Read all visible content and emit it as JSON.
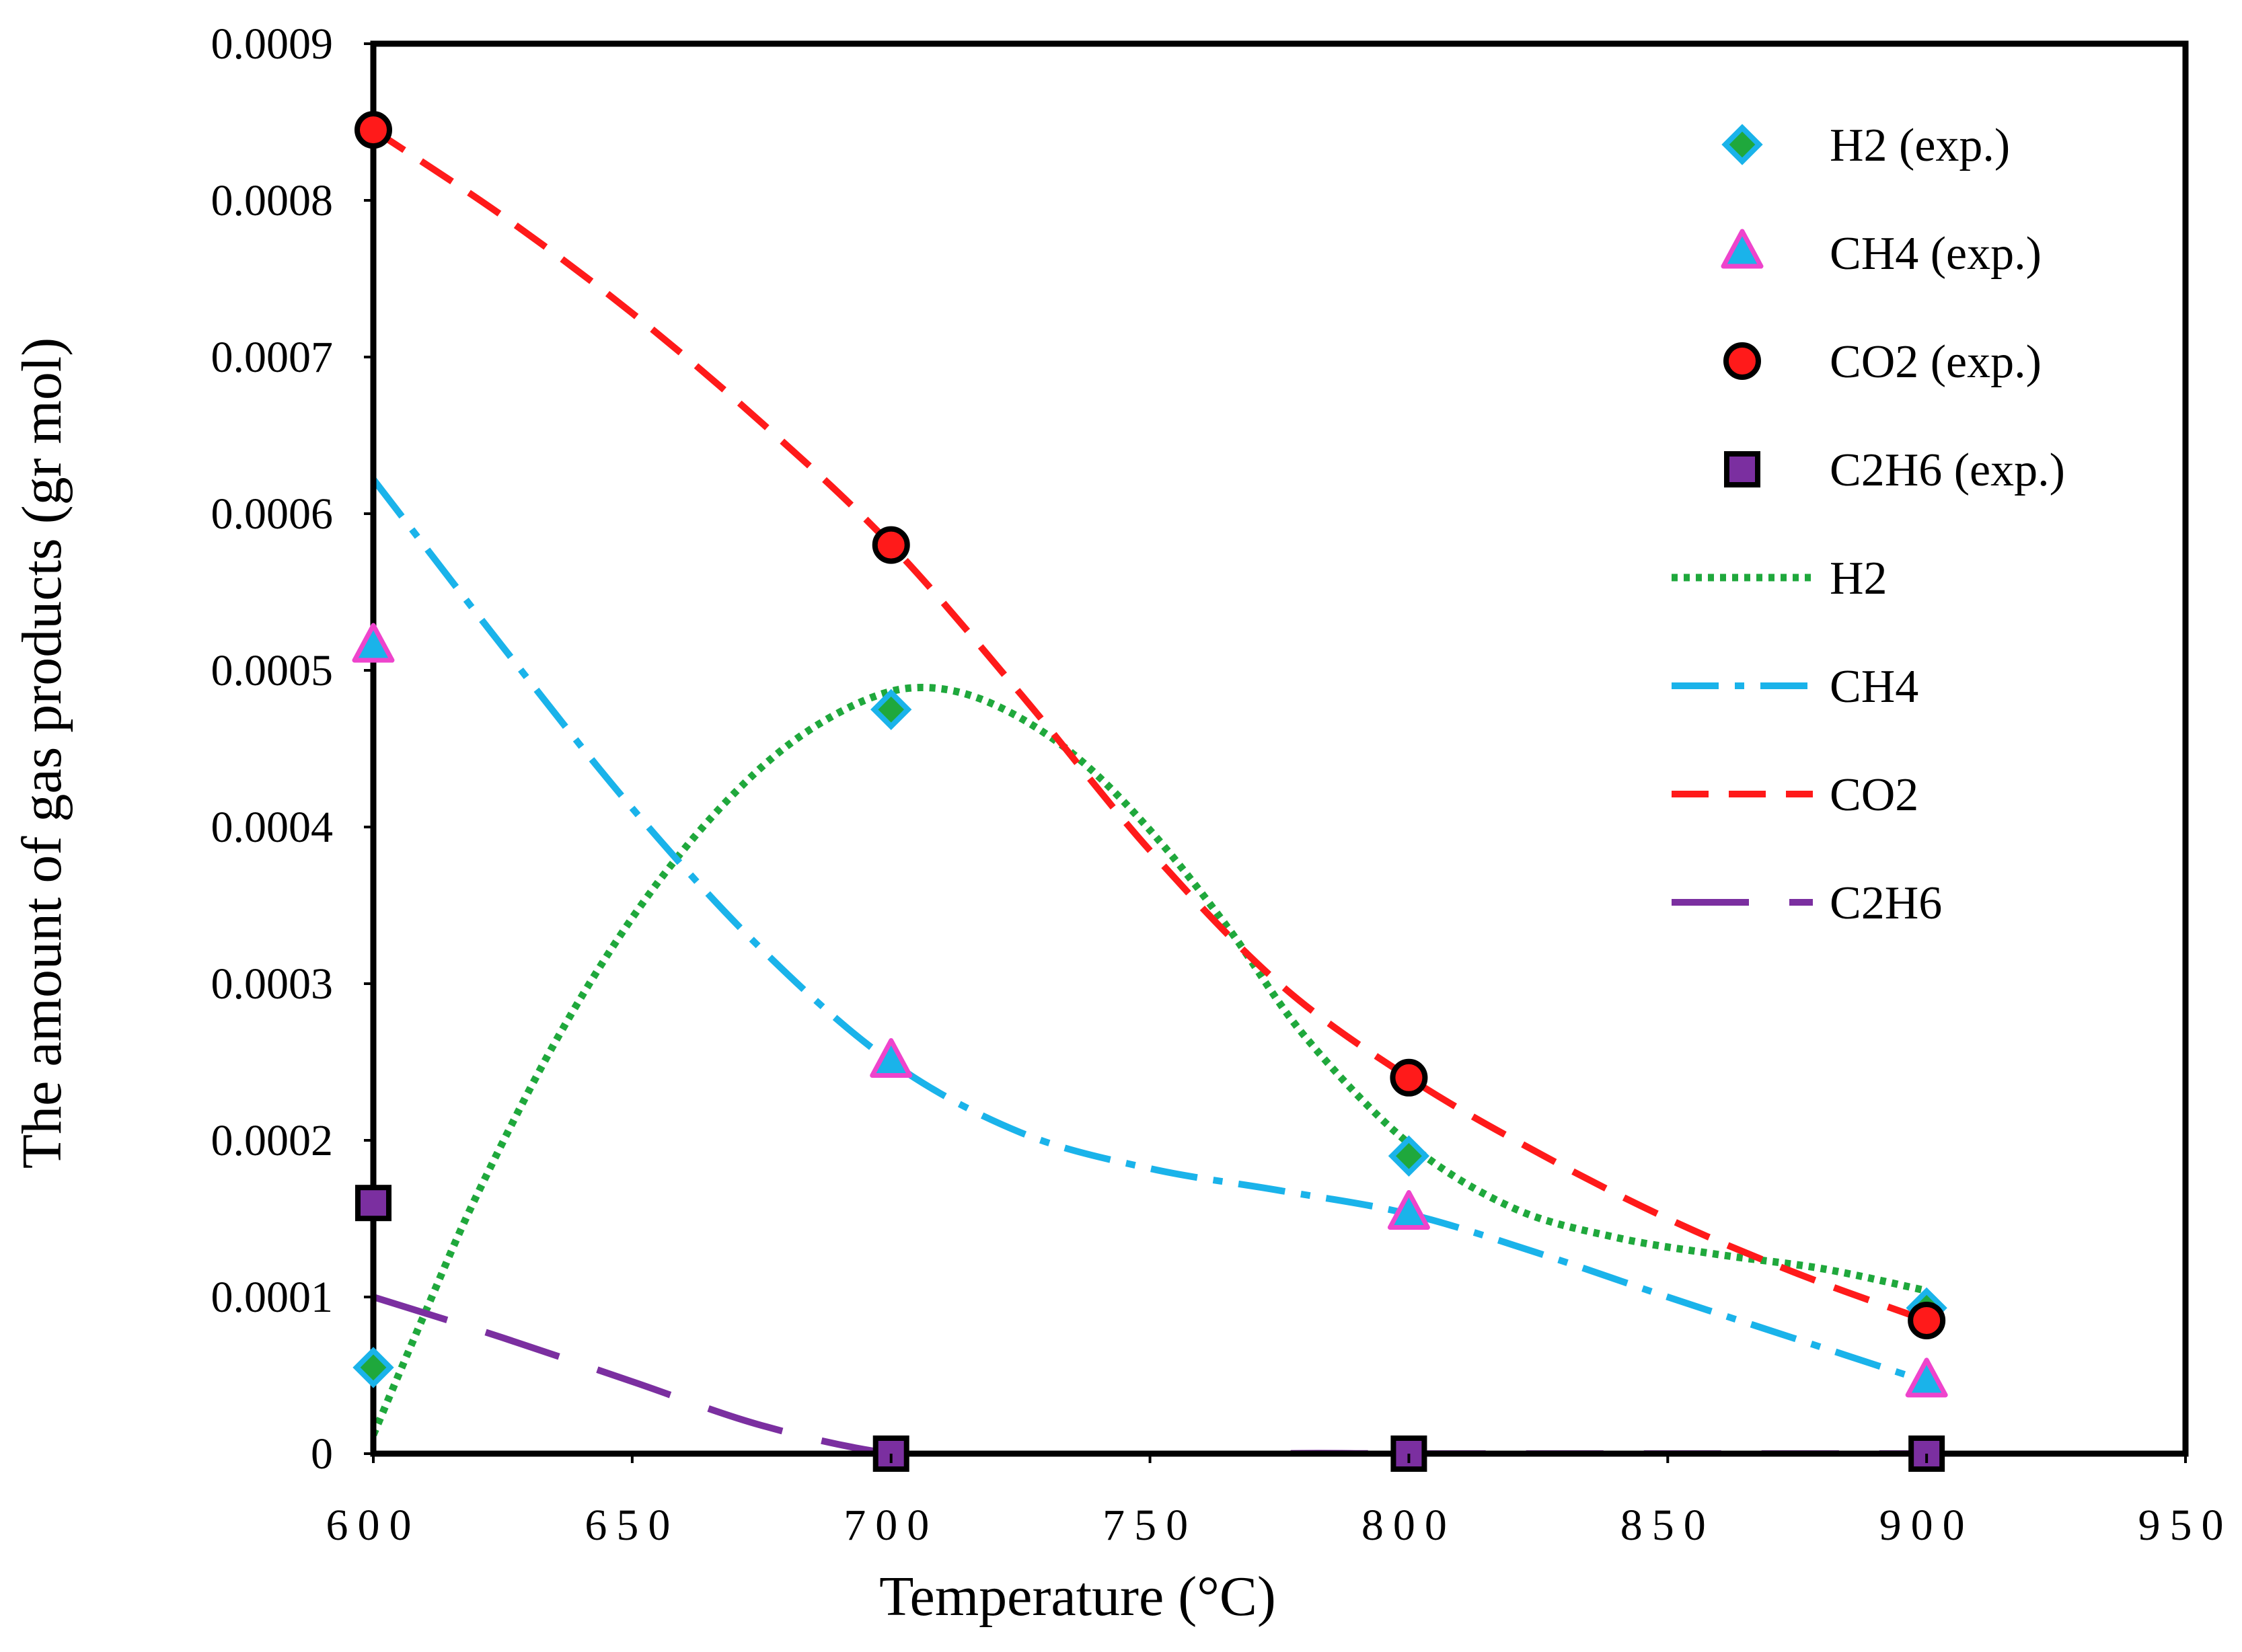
{
  "chart_data": {
    "type": "scatter",
    "title": "",
    "xlabel": "Temperature (°C)",
    "ylabel": "The amount of gas products (gr mol)",
    "xlim": [
      600,
      950
    ],
    "ylim": [
      0,
      0.0009
    ],
    "x_ticks": [
      600,
      650,
      700,
      750,
      800,
      850,
      900,
      950
    ],
    "x_tick_labels": [
      "600",
      "650",
      "700",
      "750",
      "800",
      "850",
      "900",
      "950"
    ],
    "y_ticks": [
      0,
      0.0001,
      0.0002,
      0.0003,
      0.0004,
      0.0005,
      0.0006,
      0.0007,
      0.0008,
      0.0009
    ],
    "y_tick_labels": [
      "0",
      "0.0001",
      "0.0002",
      "0.0003",
      "0.0004",
      "0.0005",
      "0.0006",
      "0.0007",
      "0.0008",
      "0.0009"
    ],
    "grid": false,
    "legend_position": "top-right",
    "series": [
      {
        "name": "H2 (exp.)",
        "kind": "marker",
        "marker": "diamond",
        "fill": "#1fa83c",
        "stroke": "#1ab3ea",
        "x": [
          600,
          700,
          800,
          900
        ],
        "y": [
          5.5e-05,
          0.000475,
          0.00019,
          9.3e-05
        ]
      },
      {
        "name": "CH4 (exp.)",
        "kind": "marker",
        "marker": "triangle",
        "fill": "#1ab3ea",
        "stroke": "#ee44cc",
        "x": [
          600,
          700,
          800,
          900
        ],
        "y": [
          0.000515,
          0.00025,
          0.000153,
          4.6e-05
        ]
      },
      {
        "name": "CO2 (exp.)",
        "kind": "marker",
        "marker": "circle",
        "fill": "#ff1a1a",
        "stroke": "#000000",
        "x": [
          600,
          700,
          800,
          900
        ],
        "y": [
          0.000845,
          0.00058,
          0.00024,
          8.5e-05
        ]
      },
      {
        "name": "C2H6 (exp.)",
        "kind": "marker",
        "marker": "square",
        "fill": "#7b2fa0",
        "stroke": "#000000",
        "x": [
          600,
          700,
          800,
          900
        ],
        "y": [
          0.00016,
          0.0,
          0.0,
          0.0
        ]
      },
      {
        "name": "H2",
        "kind": "line",
        "style": "dotted",
        "color": "#1fa83c",
        "x": [
          600,
          610,
          620,
          635,
          650,
          665,
          680,
          695,
          707,
          720,
          735,
          750,
          765,
          780,
          800,
          820,
          840,
          860,
          880,
          900
        ],
        "y": [
          1.2e-05,
          9e-05,
          0.000165,
          0.000262,
          0.000342,
          0.000405,
          0.000452,
          0.000481,
          0.000489,
          0.000478,
          0.000447,
          0.000398,
          0.000336,
          0.000266,
          0.000198,
          0.000157,
          0.000138,
          0.000127,
          0.000118,
          0.000104
        ]
      },
      {
        "name": "CH4",
        "kind": "line",
        "style": "dashdot",
        "color": "#1ab3ea",
        "x": [
          600,
          625,
          650,
          675,
          700,
          725,
          750,
          775,
          800,
          825,
          850,
          875,
          900
        ],
        "y": [
          0.000622,
          0.000515,
          0.000412,
          0.000322,
          0.00025,
          0.000205,
          0.000182,
          0.000168,
          0.000153,
          0.000128,
          0.0001,
          7.3e-05,
          4.6e-05
        ]
      },
      {
        "name": "CO2",
        "kind": "line",
        "style": "dashed",
        "color": "#ff1a1a",
        "x": [
          600,
          625,
          650,
          675,
          700,
          725,
          750,
          775,
          800,
          825,
          850,
          875,
          900
        ],
        "y": [
          0.000845,
          0.00079,
          0.000728,
          0.000658,
          0.00058,
          0.000485,
          0.000385,
          0.0003,
          0.00024,
          0.000192,
          0.00015,
          0.000115,
          8.5e-05
        ]
      },
      {
        "name": "C2H6",
        "kind": "line",
        "style": "longdash",
        "color": "#7b2fa0",
        "x": [
          600,
          625,
          650,
          675,
          700,
          725,
          750,
          775,
          800,
          850,
          900
        ],
        "y": [
          0.0001,
          7.4e-05,
          4.6e-05,
          1.8e-05,
          0.0,
          -5e-06,
          -4e-06,
          0.0,
          0.0,
          0.0,
          0.0
        ]
      }
    ]
  }
}
